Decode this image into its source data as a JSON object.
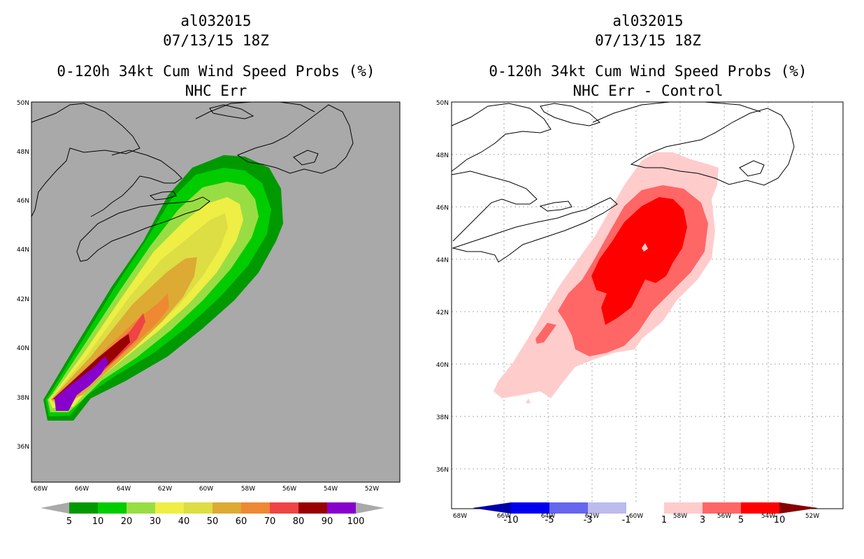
{
  "panels": [
    {
      "storm": "al032015",
      "datetime": "07/13/15 18Z",
      "product": "0-120h 34kt Cum Wind Speed Probs (%)",
      "subtitle": "NHC Err",
      "lat_labels": [
        "50N",
        "48N",
        "46N",
        "44N",
        "42N",
        "40N",
        "38N",
        "36N"
      ],
      "lon_labels": [
        "68W",
        "66W",
        "64W",
        "62W",
        "60W",
        "58W",
        "56W",
        "54W",
        "52W"
      ],
      "legend_labels": [
        "5",
        "10",
        "20",
        "30",
        "40",
        "50",
        "60",
        "70",
        "80",
        "90",
        "100"
      ],
      "colors": {
        "background": "#a9a9a9",
        "c5": "#009900",
        "c10": "#00cc00",
        "c20": "#99dd44",
        "c30": "#eeee44",
        "c40": "#dddd44",
        "c50": "#ddaa33",
        "c60": "#ee8833",
        "c70": "#ee4444",
        "c80": "#990000",
        "c90": "#8800cc"
      }
    },
    {
      "storm": "al032015",
      "datetime": "07/13/15 18Z",
      "product": "0-120h 34kt Cum Wind Speed Probs (%)",
      "subtitle": "NHC Err - Control",
      "lat_labels": [
        "50N",
        "48N",
        "46N",
        "44N",
        "42N",
        "40N",
        "38N",
        "36N"
      ],
      "lon_labels": [
        "68W",
        "66W",
        "64W",
        "62W",
        "60W",
        "58W",
        "56W",
        "54W",
        "52W"
      ],
      "legend_labels": [
        "-10",
        "-5",
        "-3",
        "-1",
        "1",
        "3",
        "5",
        "10"
      ],
      "colors": {
        "background": "#ffffff",
        "n10": "#0000aa",
        "n5": "#0000ee",
        "n3": "#6666ee",
        "n1": "#bbbbee",
        "zero": "#ffffff",
        "p1": "#ffcccc",
        "p3": "#ff6666",
        "p5": "#ff0000",
        "p10": "#880000"
      }
    }
  ]
}
